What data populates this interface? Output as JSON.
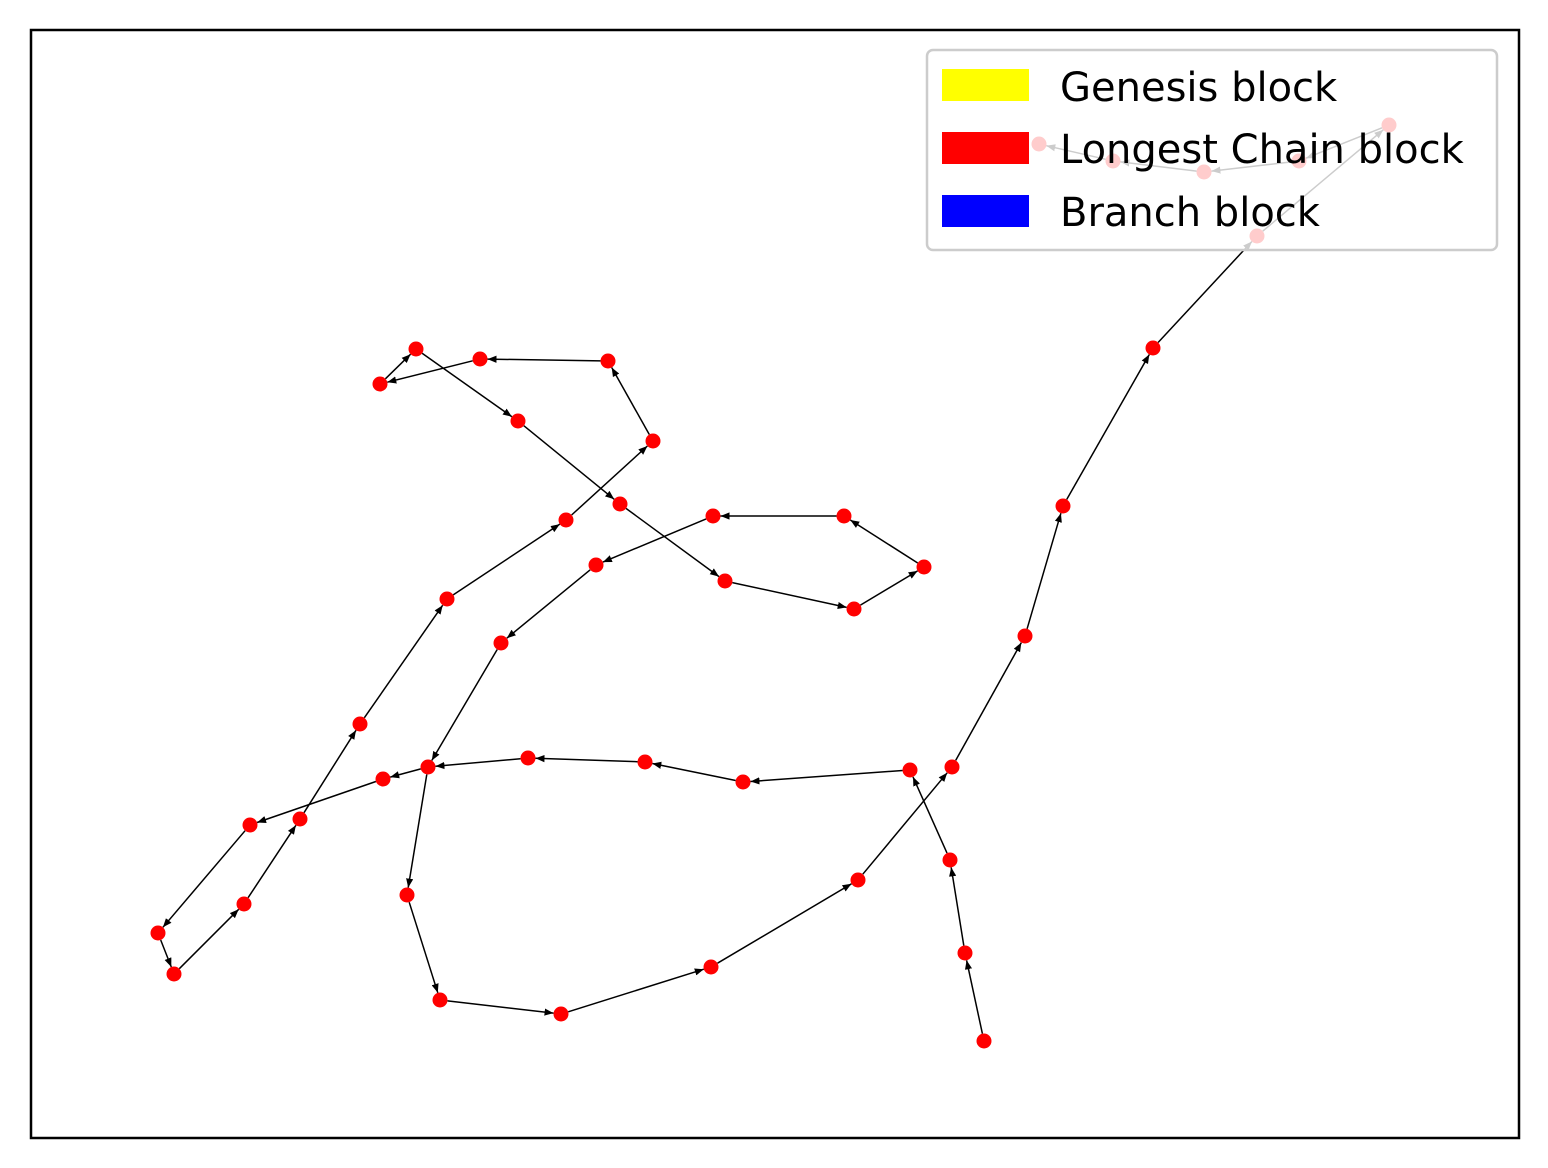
{
  "legend": {
    "items": [
      {
        "label": "Genesis block",
        "color": "#ffff00"
      },
      {
        "label": "Longest Chain block",
        "color": "#ff0000"
      },
      {
        "label": "Branch block",
        "color": "#0000ff"
      }
    ]
  },
  "colors": {
    "edge": "#000000",
    "node": "#ff0000",
    "frame": "#000000"
  }
}
